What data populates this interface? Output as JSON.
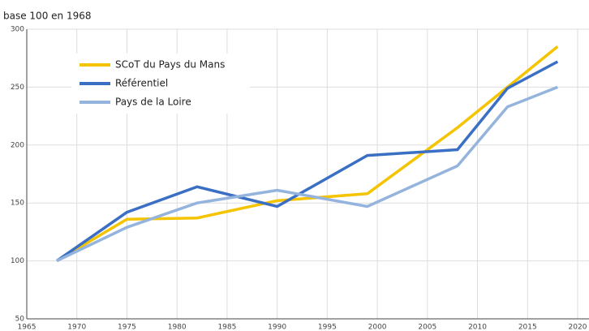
{
  "chart_data": {
    "type": "line",
    "subtitle": "base 100 en 1968",
    "x": [
      1968,
      1975,
      1982,
      1990,
      1999,
      2008,
      2013,
      2018
    ],
    "series": [
      {
        "name": "SCoT du Pays du Mans",
        "color": "#f5c400",
        "values": [
          100,
          136,
          137,
          152,
          158,
          215,
          250,
          285
        ]
      },
      {
        "name": "Référentiel",
        "color": "#3a6fc4",
        "values": [
          100,
          142,
          164,
          147,
          191,
          196,
          249,
          272
        ]
      },
      {
        "name": "Pays de la Loire",
        "color": "#94b4de",
        "values": [
          100,
          129,
          150,
          161,
          147,
          182,
          233,
          250
        ]
      }
    ],
    "xlim": [
      1965,
      2020
    ],
    "xticks": [
      1965,
      1970,
      1975,
      1980,
      1985,
      1990,
      1995,
      2000,
      2005,
      2010,
      2015,
      2020
    ],
    "ylim": [
      50,
      300
    ],
    "yticks": [
      50,
      100,
      150,
      200,
      250,
      300
    ],
    "grid": true,
    "legend": "upper left"
  }
}
